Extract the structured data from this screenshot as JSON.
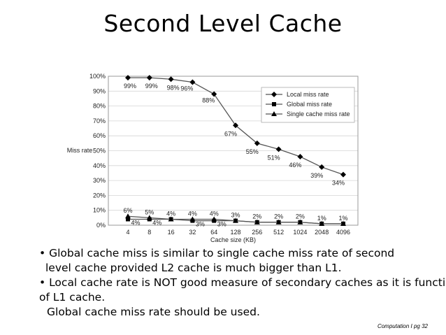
{
  "slide": {
    "title": "Second Level Cache",
    "footer": "Computation I  pg 32"
  },
  "bullets": {
    "b1_line1": "• Global cache miss is similar to single cache miss rate of second",
    "b1_line2": "level cache provided L2 cache is much bigger than L1.",
    "b2_line1": "• Local cache rate is NOT good measure of secondary caches as it is function",
    "b2_line2": "of L1 cache.",
    "b2_line3": "Global cache miss rate should be used."
  },
  "chart_data": {
    "type": "line",
    "ylabel": "Miss rate",
    "xlabel": "Cache size (KB)",
    "categories": [
      "4",
      "8",
      "16",
      "32",
      "64",
      "128",
      "256",
      "512",
      "1024",
      "2048",
      "4096"
    ],
    "ylim": [
      0,
      100
    ],
    "yticks": [
      "0%",
      "10%",
      "20%",
      "30%",
      "40%",
      "50%",
      "60%",
      "70%",
      "80%",
      "90%",
      "100%"
    ],
    "legend_position": "top-right",
    "series": [
      {
        "name": "Local miss rate",
        "marker": "diamond",
        "values": [
          99,
          99,
          98,
          96,
          88,
          67,
          55,
          51,
          46,
          39,
          34
        ],
        "labels": [
          "99%",
          "99%",
          "98%",
          "96%",
          "88%",
          "67%",
          "55%",
          "51%",
          "46%",
          "39%",
          "34%"
        ]
      },
      {
        "name": "Global miss rate",
        "marker": "square",
        "values": [
          4,
          4,
          4,
          3,
          3,
          3,
          2,
          2,
          2,
          1,
          1
        ],
        "labels": [
          "4%",
          "4%",
          "",
          "3%",
          "3%",
          "",
          "",
          "",
          "",
          "",
          ""
        ]
      },
      {
        "name": "Single cache miss rate",
        "marker": "triangle",
        "values": [
          6,
          5,
          4,
          4,
          4,
          3,
          2,
          2,
          2,
          1,
          1
        ],
        "labels": [
          "6%",
          "5%",
          "4%",
          "4%",
          "4%",
          "3%",
          "2%",
          "2%",
          "2%",
          "1%",
          "1%"
        ]
      }
    ]
  }
}
